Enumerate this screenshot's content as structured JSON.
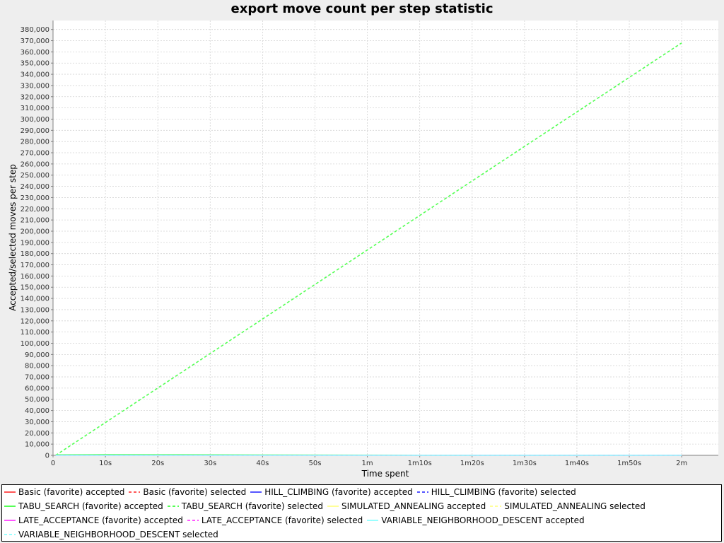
{
  "chart_data": {
    "type": "line",
    "title": "export move count per step statistic",
    "xlabel": "Time spent",
    "ylabel": "Accepted/selected moves per step",
    "x_unit": "seconds",
    "xlim": [
      0,
      127
    ],
    "ylim": [
      0,
      388000
    ],
    "x_ticks": [
      {
        "value": 0,
        "label": "0"
      },
      {
        "value": 10,
        "label": "10s"
      },
      {
        "value": 20,
        "label": "20s"
      },
      {
        "value": 30,
        "label": "30s"
      },
      {
        "value": 40,
        "label": "40s"
      },
      {
        "value": 50,
        "label": "50s"
      },
      {
        "value": 60,
        "label": "1m"
      },
      {
        "value": 70,
        "label": "1m10s"
      },
      {
        "value": 80,
        "label": "1m20s"
      },
      {
        "value": 90,
        "label": "1m30s"
      },
      {
        "value": 100,
        "label": "1m40s"
      },
      {
        "value": 110,
        "label": "1m50s"
      },
      {
        "value": 120,
        "label": "2m"
      }
    ],
    "y_tick_step": 10000,
    "y_tick_max": 380000,
    "grid": true,
    "legend_position": "bottom",
    "series": [
      {
        "name": "Basic (favorite) accepted",
        "color": "#ff5555",
        "dash": false,
        "x": [
          0.5,
          120
        ],
        "y": [
          0,
          0
        ]
      },
      {
        "name": "Basic (favorite) selected",
        "color": "#ff5555",
        "dash": true,
        "x": [
          0.5,
          120
        ],
        "y": [
          0,
          0
        ]
      },
      {
        "name": "HILL_CLIMBING (favorite) accepted",
        "color": "#5555ff",
        "dash": false,
        "x": [
          0.5,
          120
        ],
        "y": [
          0,
          0
        ]
      },
      {
        "name": "HILL_CLIMBING (favorite) selected",
        "color": "#5555ff",
        "dash": true,
        "x": [
          0.5,
          120
        ],
        "y": [
          0,
          0
        ]
      },
      {
        "name": "TABU_SEARCH (favorite) accepted",
        "color": "#55ff55",
        "dash": false,
        "x": [
          0.5,
          10,
          20,
          30,
          40,
          50,
          60,
          70,
          80
        ],
        "y": [
          500,
          700,
          600,
          500,
          400,
          300,
          200,
          100,
          0
        ]
      },
      {
        "name": "TABU_SEARCH (favorite) selected",
        "color": "#55ff55",
        "dash": true,
        "x": [
          0.5,
          120
        ],
        "y": [
          0,
          368000
        ]
      },
      {
        "name": "SIMULATED_ANNEALING accepted",
        "color": "#ffff99",
        "dash": false,
        "x": [
          0.5,
          120
        ],
        "y": [
          0,
          0
        ]
      },
      {
        "name": "SIMULATED_ANNEALING selected",
        "color": "#ffff99",
        "dash": true,
        "x": [
          0.5,
          120
        ],
        "y": [
          0,
          0
        ]
      },
      {
        "name": "LATE_ACCEPTANCE (favorite) accepted",
        "color": "#ff55ff",
        "dash": false,
        "x": [
          0.5,
          120
        ],
        "y": [
          0,
          0
        ]
      },
      {
        "name": "LATE_ACCEPTANCE (favorite) selected",
        "color": "#ff55ff",
        "dash": true,
        "x": [
          0.5,
          120
        ],
        "y": [
          0,
          0
        ]
      },
      {
        "name": "VARIABLE_NEIGHBORHOOD_DESCENT accepted",
        "color": "#99ffff",
        "dash": false,
        "x": [
          0.5,
          120
        ],
        "y": [
          0,
          0
        ]
      },
      {
        "name": "VARIABLE_NEIGHBORHOOD_DESCENT selected",
        "color": "#99ffff",
        "dash": true,
        "x": [
          0.5,
          120
        ],
        "y": [
          0,
          0
        ]
      }
    ]
  }
}
